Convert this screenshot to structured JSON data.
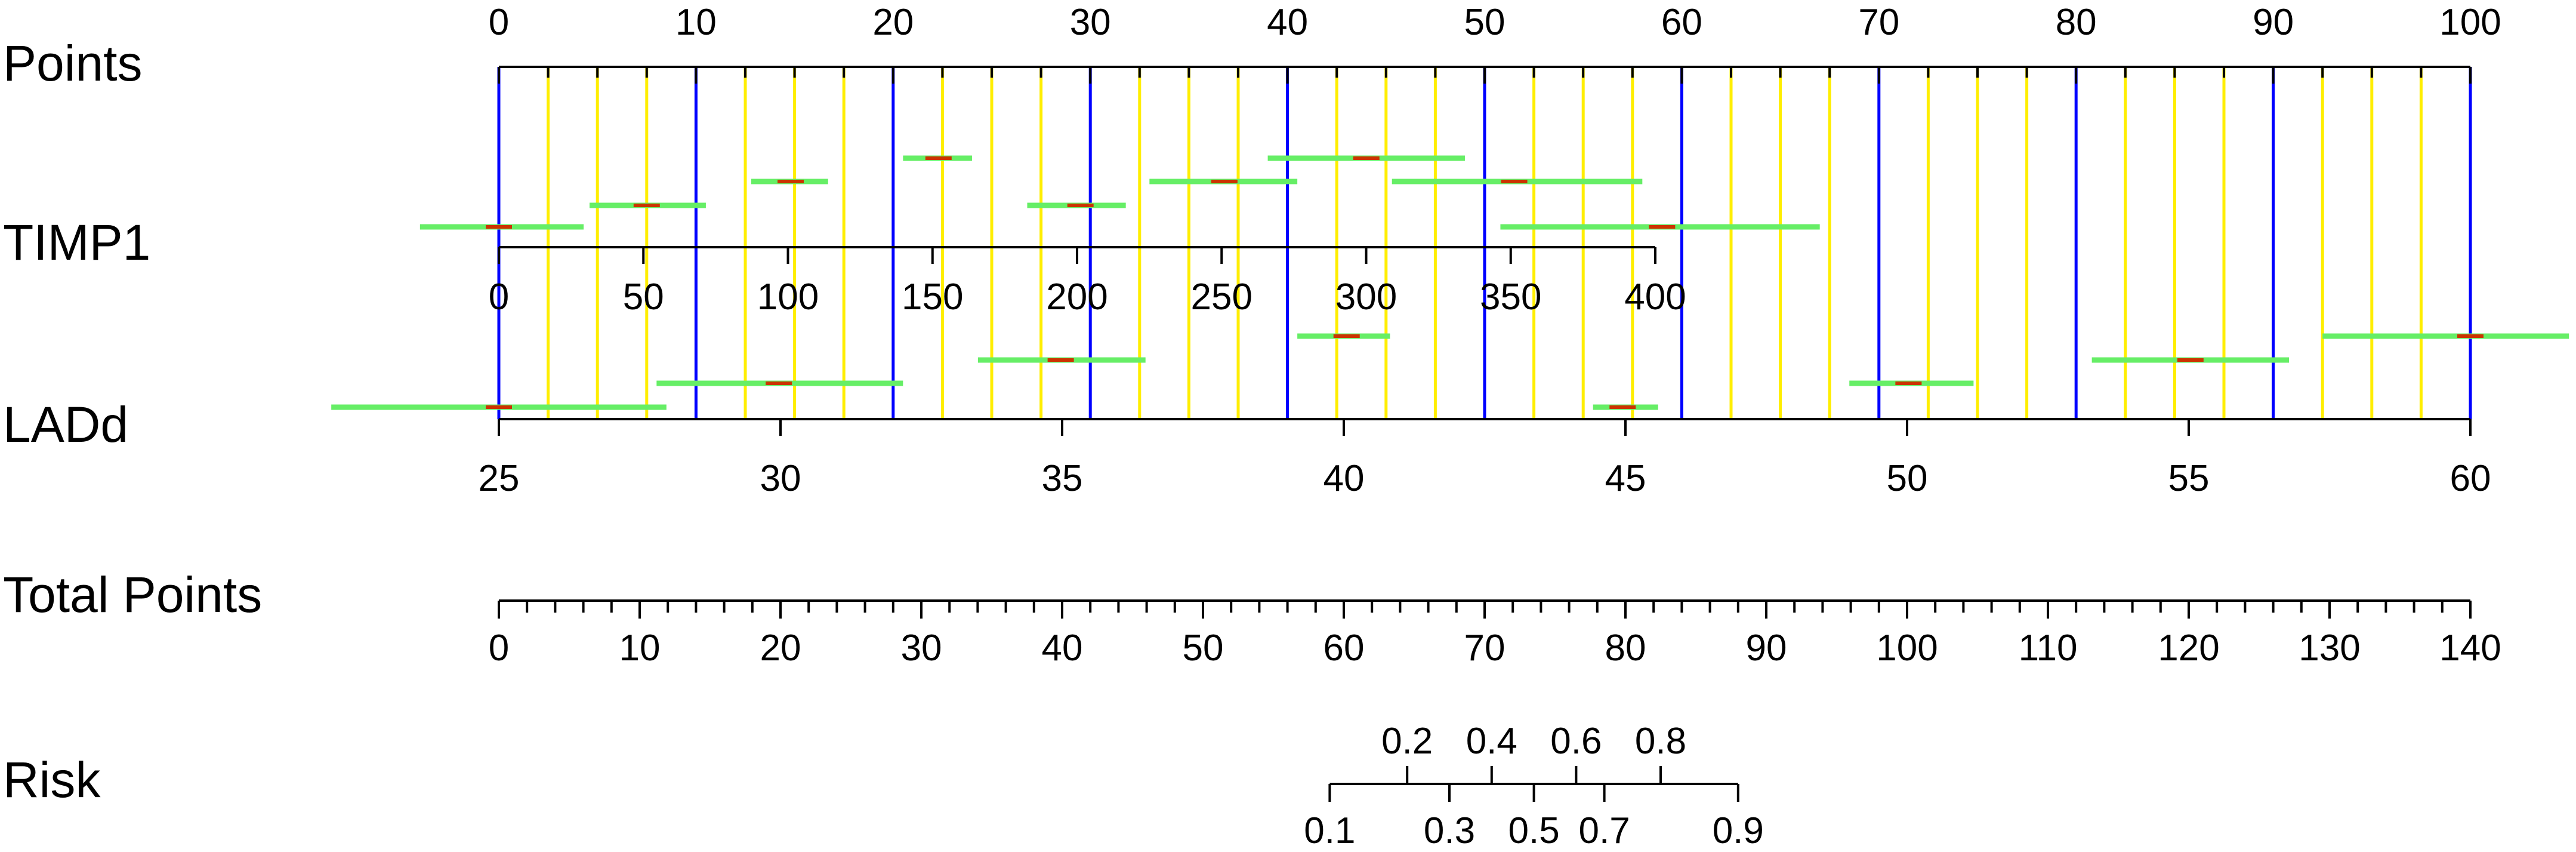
{
  "chart_data": {
    "type": "nomogram",
    "colors": {
      "axis": "#000000",
      "major_grid": "#0000ff",
      "minor_grid": "#ffee00",
      "interval": "#66ee66",
      "estimate": "#cc3300"
    },
    "rows": [
      {
        "name": "Points",
        "label": "Points"
      },
      {
        "name": "TIMP1",
        "label": "TIMP1"
      },
      {
        "name": "LADd",
        "label": "LADd"
      },
      {
        "name": "Total Points",
        "label": "Total Points"
      },
      {
        "name": "Risk",
        "label": "Risk"
      }
    ],
    "points_axis": {
      "range": [
        0,
        100
      ],
      "labels": [
        "0",
        "10",
        "20",
        "30",
        "40",
        "50",
        "60",
        "70",
        "80",
        "90",
        "100"
      ],
      "label_values": [
        0,
        10,
        20,
        30,
        40,
        50,
        60,
        70,
        80,
        90,
        100
      ],
      "minor_step": 2.5
    },
    "grid": {
      "major_step": 10,
      "minor_step": 2.5
    },
    "timp1_axis": {
      "range": [
        0,
        400
      ],
      "labels": [
        "0",
        "50",
        "100",
        "150",
        "200",
        "250",
        "300",
        "350",
        "400"
      ],
      "label_values": [
        0,
        50,
        100,
        150,
        200,
        250,
        300,
        350,
        400
      ]
    },
    "ladd_axis": {
      "range": [
        25,
        60
      ],
      "labels": [
        "25",
        "30",
        "35",
        "40",
        "45",
        "50",
        "55",
        "60"
      ],
      "label_values": [
        25,
        30,
        35,
        40,
        45,
        50,
        55,
        60
      ]
    },
    "total_points_axis": {
      "range": [
        0,
        140
      ],
      "labels": [
        "0",
        "10",
        "20",
        "30",
        "40",
        "50",
        "60",
        "70",
        "80",
        "90",
        "100",
        "110",
        "120",
        "130",
        "140"
      ],
      "label_values": [
        0,
        10,
        20,
        30,
        40,
        50,
        60,
        70,
        80,
        90,
        100,
        110,
        120,
        130,
        140
      ],
      "minor_step": 2
    },
    "risk_axis": {
      "top_labels": [
        "0.2",
        "0.4",
        "0.6",
        "0.8"
      ],
      "top_positions": [
        64.5,
        70.5,
        76.5,
        82.5
      ],
      "bottom_labels": [
        "0.1",
        "0.3",
        "0.5",
        "0.7",
        "0.9"
      ],
      "bottom_positions": [
        59,
        67.5,
        73.5,
        78.5,
        88
      ]
    },
    "timp1_intervals": [
      {
        "lo": -4,
        "est": 0,
        "hi": 4.3
      },
      {
        "lo": 4.6,
        "est": 7.5,
        "hi": 10.5
      },
      {
        "lo": 12.8,
        "est": 14.8,
        "hi": 16.7
      },
      {
        "lo": 20.5,
        "est": 22.3,
        "hi": 24
      },
      {
        "lo": 26.8,
        "est": 29.5,
        "hi": 31.8
      },
      {
        "lo": 33,
        "est": 36.8,
        "hi": 40.5
      },
      {
        "lo": 39,
        "est": 44,
        "hi": 49
      },
      {
        "lo": 45.3,
        "est": 51.5,
        "hi": 58
      },
      {
        "lo": 50.8,
        "est": 59,
        "hi": 67
      }
    ],
    "ladd_intervals": [
      {
        "lo": -8.5,
        "est": 0,
        "hi": 8.5
      },
      {
        "lo": 8,
        "est": 14.2,
        "hi": 20.5
      },
      {
        "lo": 24.3,
        "est": 28.5,
        "hi": 32.8
      },
      {
        "lo": 40.5,
        "est": 43,
        "hi": 45.2
      },
      {
        "lo": 55.5,
        "est": 57,
        "hi": 58.8
      },
      {
        "lo": 68.5,
        "est": 71.5,
        "hi": 74.8
      },
      {
        "lo": 80.8,
        "est": 85.8,
        "hi": 90.8
      },
      {
        "lo": 92.5,
        "est": 100,
        "hi": 105
      }
    ]
  }
}
